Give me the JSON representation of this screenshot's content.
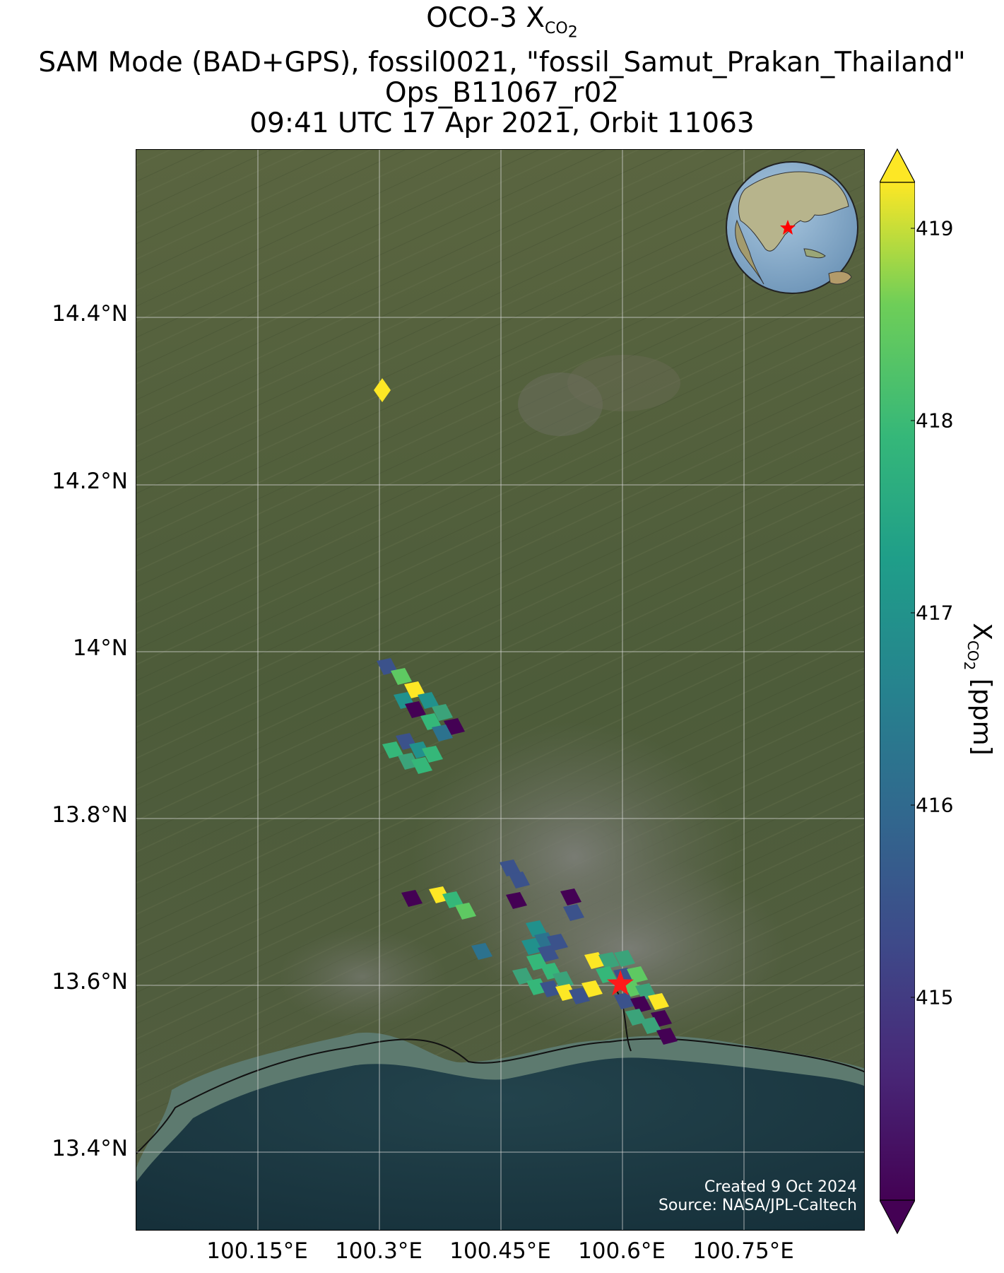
{
  "title": {
    "line1_prefix": "OCO-3 X",
    "line1_sub": "CO",
    "line1_sub2": "2",
    "line2": "SAM Mode (BAD+GPS), fossil0021, \"fossil_Samut_Prakan_Thailand\"",
    "line3": "Ops_B11067_r02",
    "line4": "09:41 UTC 17 Apr 2021, Orbit 11063"
  },
  "axes": {
    "y_ticks": [
      "14.4°N",
      "14.2°N",
      "14°N",
      "13.8°N",
      "13.6°N",
      "13.4°N"
    ],
    "x_ticks": [
      "100.15°E",
      "100.3°E",
      "100.45°E",
      "100.6°E",
      "100.75°E"
    ]
  },
  "colorbar": {
    "label_prefix": "X",
    "label_sub": "CO",
    "label_sub2": "2",
    "label_suffix": " [ppm]",
    "ticks": [
      "419",
      "418",
      "417",
      "416",
      "415"
    ],
    "range": [
      414.1,
      419.2
    ],
    "colors": [
      "#440154",
      "#3b528b",
      "#21918c",
      "#5ec962",
      "#fde725"
    ]
  },
  "credit": {
    "line1": "Created 9 Oct 2024",
    "line2": "Source: NASA/JPL-Caltech"
  },
  "target_marker": {
    "symbol": "red-star",
    "color": "#ff1a1a",
    "lon": 100.6,
    "lat": 13.6
  },
  "inset_globe": {
    "description_icon": "globe-asia-icon",
    "marker_color": "#ff0000"
  },
  "colors": {
    "land": "#4b5a3a",
    "sea": "#1b3640",
    "shallow_sea": "#5f7d74",
    "grid": "#d8d8d8"
  }
}
